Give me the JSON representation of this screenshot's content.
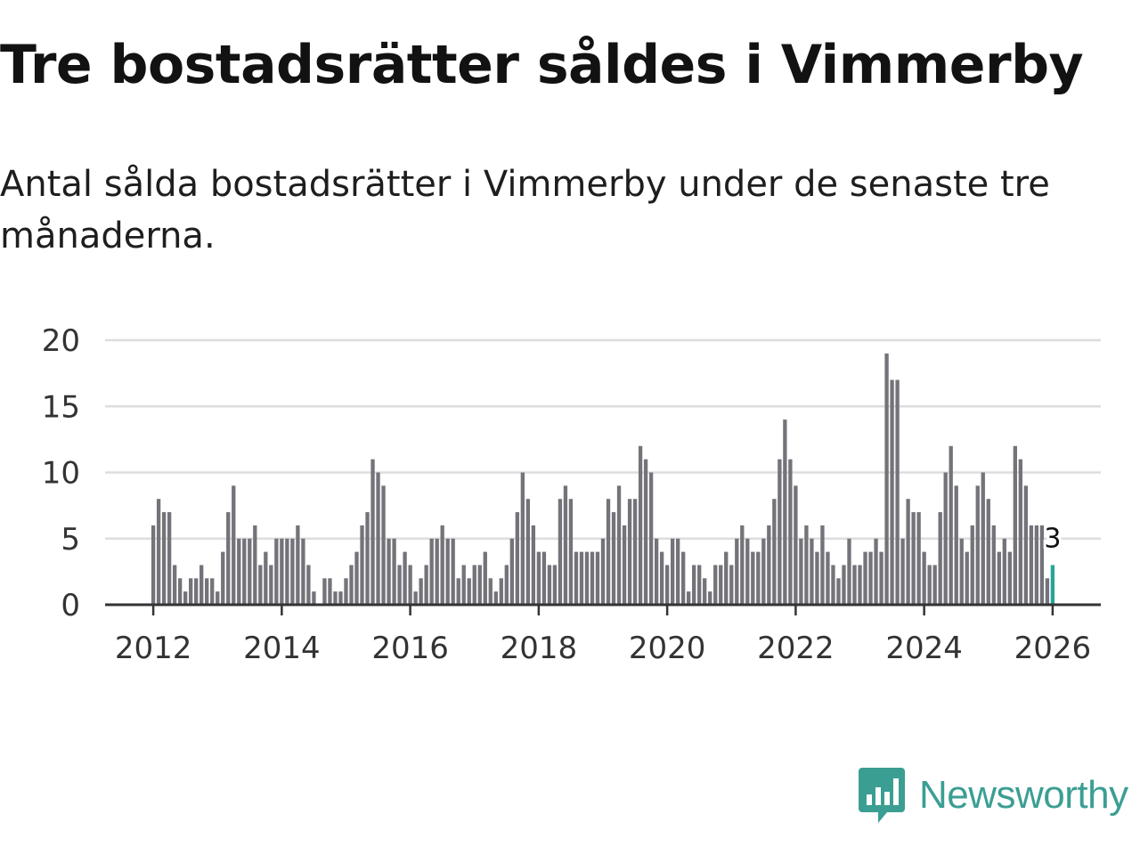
{
  "title": "Tre bostadsrätter såldes i Vimmerby",
  "subtitle": "Antal sålda bostadsrätter i Vimmerby under de senaste tre månaderna.",
  "brand": {
    "name": "Newsworthy",
    "color": "#3b9e93",
    "icon": "bar-chart-speech-bubble-icon"
  },
  "colors": {
    "bar": "#74737a",
    "highlight": "#2aa398",
    "grid": "#dddddd",
    "axis": "#333333"
  },
  "chart_data": {
    "type": "bar",
    "title": "Tre bostadsrätter såldes i Vimmerby",
    "xlabel": "",
    "ylabel": "",
    "ylim": [
      0,
      20
    ],
    "xlim": [
      2011.25,
      2026.75
    ],
    "yticks": [
      0,
      5,
      10,
      15,
      20
    ],
    "xticks": [
      "2012",
      "2014",
      "2016",
      "2018",
      "2020",
      "2022",
      "2024",
      "2026"
    ],
    "grid": true,
    "start": {
      "year": 2012,
      "month": 1
    },
    "values": [
      6,
      8,
      7,
      7,
      3,
      2,
      1,
      2,
      2,
      3,
      2,
      2,
      1,
      4,
      7,
      9,
      5,
      5,
      5,
      6,
      3,
      4,
      3,
      5,
      5,
      5,
      5,
      6,
      5,
      3,
      1,
      0,
      2,
      2,
      1,
      1,
      2,
      3,
      4,
      6,
      7,
      11,
      10,
      9,
      5,
      5,
      3,
      4,
      3,
      1,
      2,
      3,
      5,
      5,
      6,
      5,
      5,
      2,
      3,
      2,
      3,
      3,
      4,
      2,
      1,
      2,
      3,
      5,
      7,
      10,
      8,
      6,
      4,
      4,
      3,
      3,
      8,
      9,
      8,
      4,
      4,
      4,
      4,
      4,
      5,
      8,
      7,
      9,
      6,
      8,
      8,
      12,
      11,
      10,
      5,
      4,
      3,
      5,
      5,
      4,
      1,
      3,
      3,
      2,
      1,
      3,
      3,
      4,
      3,
      5,
      6,
      5,
      4,
      4,
      5,
      6,
      8,
      11,
      14,
      11,
      9,
      5,
      6,
      5,
      4,
      6,
      4,
      3,
      2,
      3,
      5,
      3,
      3,
      4,
      4,
      5,
      4,
      19,
      17,
      17,
      5,
      8,
      7,
      7,
      4,
      3,
      3,
      7,
      10,
      12,
      9,
      5,
      4,
      6,
      9,
      10,
      8,
      6,
      4,
      5,
      4,
      12,
      11,
      9,
      6,
      6,
      6,
      2,
      3
    ],
    "highlight": {
      "index": 168,
      "value": 3,
      "label": "3"
    }
  }
}
